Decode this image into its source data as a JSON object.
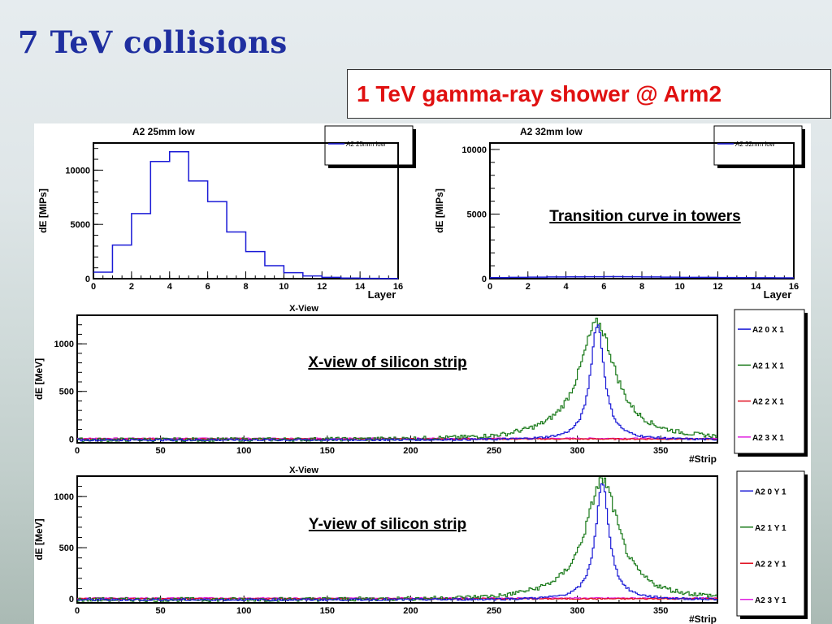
{
  "slide": {
    "title": "7 TeV collisions",
    "subtitle": "1 TeV gamma-ray shower @ Arm2"
  },
  "chart_data": [
    {
      "type": "line",
      "title": "A2 25mm low",
      "xlabel": "Layer",
      "xlabel_below": "X-View",
      "ylabel": "dE [MIPs]",
      "xlim": [
        0,
        16
      ],
      "ylim": [
        0,
        12500
      ],
      "xticks": [
        "0",
        "2",
        "4",
        "6",
        "8",
        "10",
        "12",
        "14",
        "16"
      ],
      "yticks": [
        "0",
        "5000",
        "10000"
      ],
      "legend": [
        "A2 25mm low"
      ],
      "legend_position": "top-right",
      "series": [
        {
          "name": "A2 25mm low",
          "color": "#1a1ad6",
          "values": [
            600,
            3100,
            6000,
            10800,
            11700,
            9000,
            7100,
            4300,
            2500,
            1200,
            550,
            250,
            120,
            60,
            30,
            20
          ]
        }
      ]
    },
    {
      "type": "line",
      "title": "A2 32mm low",
      "xlabel": "Layer",
      "ylabel": "dE [MIPs]",
      "xlim": [
        0,
        16
      ],
      "ylim": [
        0,
        10500
      ],
      "xticks": [
        "0",
        "2",
        "4",
        "6",
        "8",
        "10",
        "12",
        "14",
        "16"
      ],
      "yticks": [
        "0",
        "5000",
        "10000"
      ],
      "legend": [
        "A2 32mm low"
      ],
      "legend_position": "top-right",
      "annotation": "Transition curve in towers",
      "series": [
        {
          "name": "A2 32mm low",
          "color": "#1a1ad6",
          "values": [
            80,
            100,
            120,
            130,
            140,
            150,
            160,
            150,
            130,
            120,
            100,
            100,
            90,
            80,
            70,
            60
          ]
        }
      ]
    },
    {
      "type": "line",
      "xlabel": "#Strip",
      "xlabel_below": "X-View",
      "ylabel": "dE [MeV]",
      "xlim": [
        0,
        384
      ],
      "ylim": [
        -40,
        1300
      ],
      "xticks": [
        "0",
        "50",
        "100",
        "150",
        "200",
        "250",
        "300",
        "350"
      ],
      "yticks": [
        "0",
        "500",
        "1000"
      ],
      "annotation": "X-view of silicon strip",
      "legend_position": "right",
      "peak": 312,
      "series": [
        {
          "name": "A2 0 X 1",
          "color": "#1a1ad6",
          "peak_value": 1220,
          "width": 5
        },
        {
          "name": "A2 1 X 1",
          "color": "#1a7a1a",
          "peak_value": 1200,
          "width": 13
        },
        {
          "name": "A2 2 X 1",
          "color": "#e01020",
          "peak_value": 0,
          "width": 0
        },
        {
          "name": "A2 3 X 1",
          "color": "#e020e0",
          "peak_value": 0,
          "width": 0
        }
      ]
    },
    {
      "type": "line",
      "xlabel": "#Strip",
      "ylabel": "dE [MeV]",
      "xlim": [
        0,
        384
      ],
      "ylim": [
        -40,
        1200
      ],
      "xticks": [
        "0",
        "50",
        "100",
        "150",
        "200",
        "250",
        "300",
        "350"
      ],
      "yticks": [
        "0",
        "500",
        "1000"
      ],
      "annotation": "Y-view of silicon strip",
      "legend_position": "right",
      "peak": 315,
      "series": [
        {
          "name": "A2 0 Y 1",
          "color": "#1a1ad6",
          "peak_value": 1130,
          "width": 5
        },
        {
          "name": "A2 1 Y 1",
          "color": "#1a7a1a",
          "peak_value": 1150,
          "width": 12
        },
        {
          "name": "A2 2 Y 1",
          "color": "#e01020",
          "peak_value": 0,
          "width": 0
        },
        {
          "name": "A2 3 Y 1",
          "color": "#e020e0",
          "peak_value": 0,
          "width": 0
        }
      ]
    }
  ]
}
